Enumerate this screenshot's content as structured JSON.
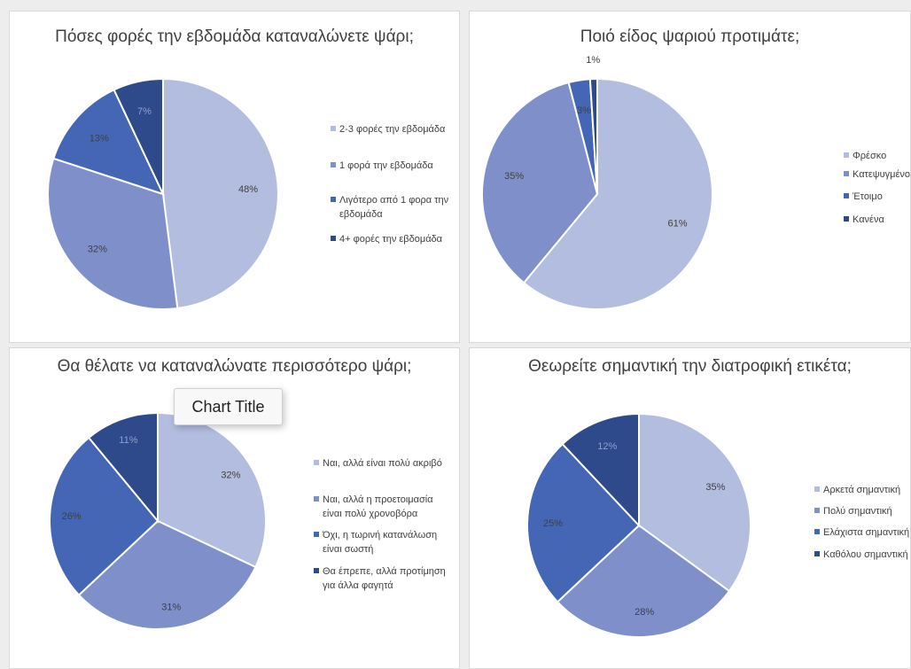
{
  "colors": [
    "#b3bddf",
    "#7f8fca",
    "#4466b4",
    "#2f4a8a"
  ],
  "tooltip": {
    "text": "Chart Title"
  },
  "chart_data": [
    {
      "type": "pie",
      "title": "Πόσες φορές την εβδομάδα καταναλώνετε ψάρι;",
      "slices": [
        {
          "label": "2-3 φορές την εβδομάδα",
          "value": 48,
          "data_label": "48%"
        },
        {
          "label": "1 φορά την εβδομάδα",
          "value": 32,
          "data_label": "32%"
        },
        {
          "label": "Λιγότερο από 1 φορα την εβδομάδα",
          "value": 13,
          "data_label": "13%"
        },
        {
          "label": "4+ φορές την εβδομάδα",
          "value": 7,
          "data_label": "7%"
        }
      ],
      "legend_lines": [
        [
          "2-3 φορές την εβδομάδα"
        ],
        [
          "1 φορά την εβδομάδα"
        ],
        [
          "Λιγότερο από 1 φορα την",
          "εβδομάδα"
        ],
        [
          "4+ φορές την εβδομάδα"
        ]
      ],
      "legend": "right"
    },
    {
      "type": "pie",
      "title": "Ποιό είδος ψαριού προτιμάτε;",
      "slices": [
        {
          "label": "Φρέσκο",
          "value": 61,
          "data_label": "61%"
        },
        {
          "label": "Κατεψυγμένο",
          "value": 35,
          "data_label": "35%"
        },
        {
          "label": "Έτοιμο",
          "value": 3,
          "data_label": "3%"
        },
        {
          "label": "Κανένα",
          "value": 1,
          "data_label": "1%"
        }
      ],
      "legend_lines": [
        [
          "Φρέσκο"
        ],
        [
          "Κατεψυγμένο"
        ],
        [
          "Έτοιμο"
        ],
        [
          "Κανένα"
        ]
      ],
      "legend": "right"
    },
    {
      "type": "pie",
      "title": "Θα θέλατε να καταναλώνατε περισσότερο ψάρι;",
      "slices": [
        {
          "label": "Ναι, αλλά είναι πολύ ακριβό",
          "value": 32,
          "data_label": "32%"
        },
        {
          "label": "Ναι, αλλά η προετοιμασία είναι πολύ χρονοβόρα",
          "value": 31,
          "data_label": "31%"
        },
        {
          "label": "Όχι, η τωρινή κατανάλωση είναι σωστή",
          "value": 26,
          "data_label": "26%"
        },
        {
          "label": "Θα έπρεπε, αλλά προτίμηση για άλλα φαγητά",
          "value": 11,
          "data_label": "11%"
        }
      ],
      "legend_lines": [
        [
          "Ναι, αλλά είναι πολύ ακριβό"
        ],
        [
          "Ναι, αλλά η προετοιμασία",
          "είναι πολύ χρονοβόρα"
        ],
        [
          "Όχι, η τωρινή κατανάλωση",
          "είναι σωστή"
        ],
        [
          "Θα έπρεπε, αλλά προτίμηση",
          "για άλλα φαγητά"
        ]
      ],
      "legend": "right"
    },
    {
      "type": "pie",
      "title": "Θεωρείτε σημαντική την διατροφική ετικέτα;",
      "slices": [
        {
          "label": "Αρκετά σημαντική",
          "value": 35,
          "data_label": "35%"
        },
        {
          "label": "Πολύ σημαντική",
          "value": 28,
          "data_label": "28%"
        },
        {
          "label": "Ελάχιστα σημαντική",
          "value": 25,
          "data_label": "25%"
        },
        {
          "label": "Καθόλου σημαντική",
          "value": 12,
          "data_label": "12%"
        }
      ],
      "legend_lines": [
        [
          "Αρκετά σημαντική"
        ],
        [
          "Πολύ σημαντική"
        ],
        [
          "Ελάχιστα σημαντική"
        ],
        [
          "Καθόλου σημαντική"
        ]
      ],
      "legend": "right"
    }
  ]
}
